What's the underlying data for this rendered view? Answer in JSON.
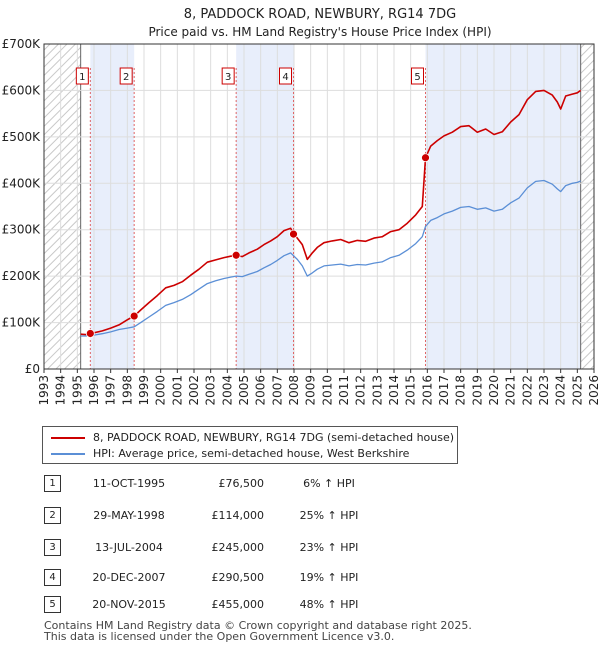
{
  "chart_data": {
    "type": "line",
    "title": "8, PADDOCK ROAD, NEWBURY, RG14 7DG",
    "subtitle": "Price paid vs. HM Land Registry's House Price Index (HPI)",
    "ylim": [
      0,
      700000
    ],
    "xlim": [
      1993,
      2026
    ],
    "y_ticks": [
      0,
      100000,
      200000,
      300000,
      400000,
      500000,
      600000,
      700000
    ],
    "y_tick_labels": [
      "£0",
      "£100K",
      "£200K",
      "£300K",
      "£400K",
      "£500K",
      "£600K",
      "£700K"
    ],
    "x_ticks": [
      "1993",
      "1994",
      "1995",
      "1996",
      "1997",
      "1998",
      "1999",
      "2000",
      "2001",
      "2002",
      "2003",
      "2004",
      "2005",
      "2006",
      "2007",
      "2008",
      "2009",
      "2010",
      "2011",
      "2012",
      "2013",
      "2014",
      "2015",
      "2016",
      "2017",
      "2018",
      "2019",
      "2020",
      "2021",
      "2022",
      "2023",
      "2024",
      "2025",
      "2026"
    ],
    "hatched_ranges": [
      [
        1993,
        1995.2
      ],
      [
        2025.2,
        2026
      ]
    ],
    "shaded_ranges": [
      [
        1995.78,
        1998.41
      ],
      [
        2004.53,
        2007.97
      ],
      [
        2015.89,
        2025.2
      ]
    ],
    "series": [
      {
        "name": "8, PADDOCK ROAD, NEWBURY, RG14 7DG (semi-detached house)",
        "color": "#cc0000",
        "x": [
          1995.2,
          1995.5,
          1995.78,
          1996.0,
          1996.5,
          1997.0,
          1997.5,
          1998.0,
          1998.41,
          1998.8,
          1999.3,
          1999.8,
          2000.3,
          2000.8,
          2001.3,
          2001.8,
          2002.3,
          2002.8,
          2003.3,
          2003.8,
          2004.2,
          2004.53,
          2004.9,
          2005.3,
          2005.8,
          2006.2,
          2006.6,
          2007.0,
          2007.4,
          2007.8,
          2007.97,
          2008.2,
          2008.5,
          2008.8,
          2009.1,
          2009.4,
          2009.8,
          2010.3,
          2010.8,
          2011.3,
          2011.8,
          2012.3,
          2012.8,
          2013.3,
          2013.8,
          2014.3,
          2014.8,
          2015.3,
          2015.7,
          2015.89,
          2016.2,
          2016.6,
          2017.0,
          2017.5,
          2018.0,
          2018.5,
          2019.0,
          2019.5,
          2020.0,
          2020.5,
          2021.0,
          2021.5,
          2022.0,
          2022.5,
          2023.0,
          2023.5,
          2023.8,
          2024.0,
          2024.3,
          2024.7,
          2025.0,
          2025.2
        ],
        "values": [
          75000,
          74000,
          76500,
          78000,
          82000,
          88000,
          95000,
          106000,
          114000,
          127000,
          143000,
          158000,
          175000,
          180000,
          188000,
          202000,
          215000,
          230000,
          235000,
          240000,
          243000,
          245000,
          242000,
          250000,
          258000,
          268000,
          276000,
          285000,
          298000,
          303000,
          290500,
          282000,
          268000,
          236000,
          250000,
          262000,
          272000,
          276000,
          279000,
          272000,
          277000,
          275000,
          282000,
          285000,
          296000,
          300000,
          314000,
          332000,
          350000,
          455000,
          480000,
          492000,
          502000,
          510000,
          522000,
          524000,
          510000,
          517000,
          505000,
          511000,
          532000,
          548000,
          580000,
          598000,
          600000,
          590000,
          575000,
          560000,
          588000,
          592000,
          595000,
          600000
        ]
      },
      {
        "name": "HPI: Average price, semi-detached house, West Berkshire",
        "color": "#5b8fd6",
        "x": [
          1995.2,
          1995.5,
          1995.78,
          1996.0,
          1996.5,
          1997.0,
          1997.5,
          1998.0,
          1998.41,
          1998.8,
          1999.3,
          1999.8,
          2000.3,
          2000.8,
          2001.3,
          2001.8,
          2002.3,
          2002.8,
          2003.3,
          2003.8,
          2004.2,
          2004.53,
          2004.9,
          2005.3,
          2005.8,
          2006.2,
          2006.6,
          2007.0,
          2007.4,
          2007.8,
          2007.97,
          2008.2,
          2008.5,
          2008.8,
          2009.1,
          2009.4,
          2009.8,
          2010.3,
          2010.8,
          2011.3,
          2011.8,
          2012.3,
          2012.8,
          2013.3,
          2013.8,
          2014.3,
          2014.8,
          2015.3,
          2015.7,
          2015.89,
          2016.2,
          2016.6,
          2017.0,
          2017.5,
          2018.0,
          2018.5,
          2019.0,
          2019.5,
          2020.0,
          2020.5,
          2021.0,
          2021.5,
          2022.0,
          2022.5,
          2023.0,
          2023.5,
          2023.8,
          2024.0,
          2024.3,
          2024.7,
          2025.0,
          2025.2
        ],
        "values": [
          71000,
          71000,
          72000,
          73000,
          76000,
          80000,
          85000,
          88000,
          91000,
          100000,
          112000,
          124000,
          137000,
          143000,
          150000,
          160000,
          172000,
          184000,
          190000,
          195000,
          198000,
          200000,
          199000,
          204000,
          210000,
          218000,
          225000,
          234000,
          244000,
          250000,
          244000,
          236000,
          222000,
          200000,
          207000,
          215000,
          222000,
          224000,
          226000,
          222000,
          225000,
          224000,
          228000,
          231000,
          240000,
          245000,
          256000,
          270000,
          285000,
          307000,
          320000,
          326000,
          334000,
          340000,
          348000,
          350000,
          344000,
          347000,
          340000,
          344000,
          358000,
          368000,
          390000,
          404000,
          406000,
          398000,
          388000,
          382000,
          395000,
          400000,
          402000,
          405000
        ]
      }
    ],
    "sale_markers": [
      {
        "label": "1",
        "x": 1995.78,
        "value": 76500
      },
      {
        "label": "2",
        "x": 1998.41,
        "value": 114000
      },
      {
        "label": "3",
        "x": 2004.53,
        "value": 245000
      },
      {
        "label": "4",
        "x": 2007.97,
        "value": 290500
      },
      {
        "label": "5",
        "x": 2015.89,
        "value": 455000
      }
    ]
  },
  "legend": {
    "property": "8, PADDOCK ROAD, NEWBURY, RG14 7DG (semi-detached house)",
    "hpi": "HPI: Average price, semi-detached house, West Berkshire"
  },
  "sales": [
    {
      "num": "1",
      "date": "11-OCT-1995",
      "price": "£76,500",
      "pct": "6% ↑ HPI"
    },
    {
      "num": "2",
      "date": "29-MAY-1998",
      "price": "£114,000",
      "pct": "25% ↑ HPI"
    },
    {
      "num": "3",
      "date": "13-JUL-2004",
      "price": "£245,000",
      "pct": "23% ↑ HPI"
    },
    {
      "num": "4",
      "date": "20-DEC-2007",
      "price": "£290,500",
      "pct": "19% ↑ HPI"
    },
    {
      "num": "5",
      "date": "20-NOV-2015",
      "price": "£455,000",
      "pct": "48% ↑ HPI"
    }
  ],
  "footer": {
    "line1": "Contains HM Land Registry data © Crown copyright and database right 2025.",
    "line2": "This data is licensed under the Open Government Licence v3.0."
  }
}
